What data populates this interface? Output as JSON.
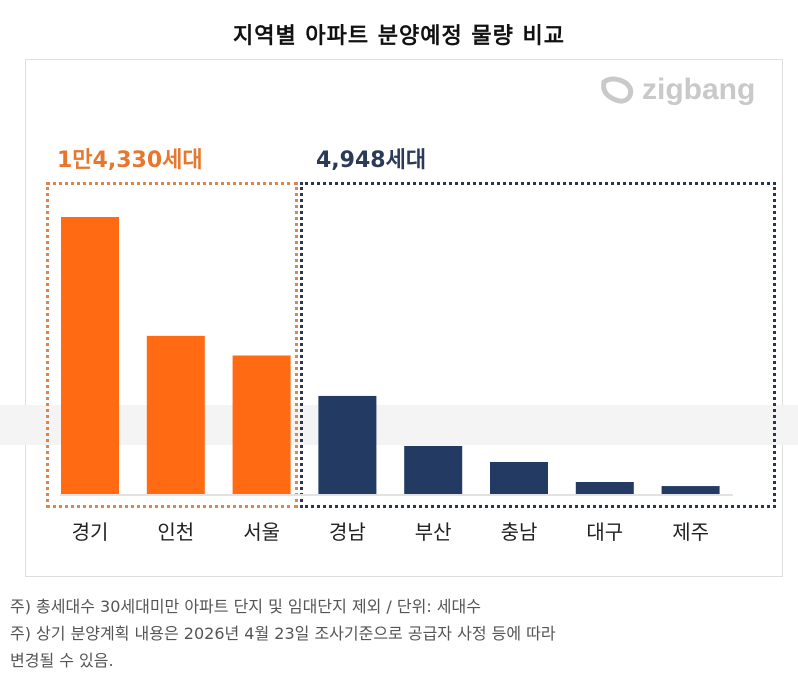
{
  "title": "지역별 아파트 분양예정 물량 비교",
  "logo": "zigbang",
  "groups": [
    {
      "label": "1만4,330세대",
      "color": "#e8772e"
    },
    {
      "label": "4,948세대",
      "color": "#2a3a58"
    }
  ],
  "chart_data": {
    "type": "bar",
    "title": "지역별 아파트 분양예정 물량 비교",
    "categories": [
      "경기",
      "인천",
      "서울",
      "경남",
      "부산",
      "충남",
      "대구",
      "제주"
    ],
    "values": [
      6920,
      3950,
      3460,
      2450,
      1200,
      800,
      300,
      198
    ],
    "colors": [
      "#ff6a13",
      "#ff6a13",
      "#ff6a13",
      "#233a63",
      "#233a63",
      "#233a63",
      "#233a63",
      "#233a63"
    ],
    "ylim": [
      0,
      7000
    ],
    "grid": false,
    "xlabel": "",
    "ylabel": ""
  },
  "notes": [
    "주) 총세대수 30세대미만 아파트  단지 및 임대단지 제외 / 단위: 세대수",
    "주) 상기 분양계획 내용은 2026년 4월 23일 조사기준으로 공급자 사정 등에 따라",
    "변경될 수 있음."
  ]
}
